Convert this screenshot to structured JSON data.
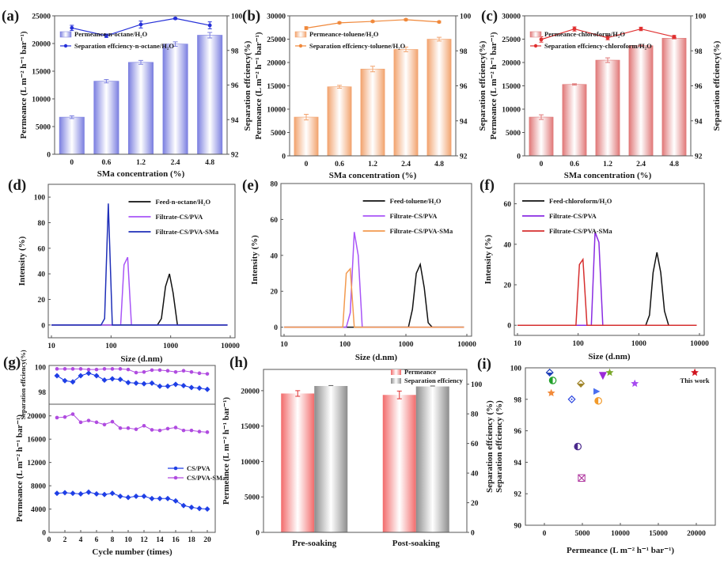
{
  "chart_data": [
    {
      "id": "a",
      "panel_label": "(a)",
      "type": "bar",
      "title": "",
      "xlabel": "SMa concentration (%)",
      "ylabel": "Permeance (L m⁻² h⁻¹ bar⁻¹)",
      "y2label": "Separation effciency(%)",
      "categories": [
        "0",
        "0.6",
        "1.2",
        "2.4",
        "4.8"
      ],
      "ylim": [
        0,
        25000
      ],
      "yticks": [
        0,
        5000,
        10000,
        15000,
        20000,
        25000
      ],
      "y2lim": [
        92,
        100
      ],
      "y2ticks": [
        92,
        94,
        96,
        98,
        100
      ],
      "color": "#7b7fe0",
      "series": [
        {
          "name": "Permeance-n-octane/H₂O",
          "kind": "bar",
          "axis": "left",
          "values": [
            6700,
            13200,
            16600,
            19900,
            21500
          ],
          "errors": [
            250,
            300,
            350,
            400,
            500
          ]
        },
        {
          "name": "Separation effciency-n-octane/H₂O",
          "kind": "line",
          "axis": "right",
          "values": [
            99.3,
            98.85,
            99.5,
            99.85,
            99.45
          ],
          "errors": [
            0.15,
            0.1,
            0.2,
            0.05,
            0.2
          ]
        }
      ],
      "legend": "top-left"
    },
    {
      "id": "b",
      "panel_label": "(b)",
      "type": "bar",
      "title": "",
      "xlabel": "SMa concentration (%)",
      "ylabel": "Permeance (L m⁻² h⁻¹ bar⁻¹)",
      "ylabel_overlap": "Separation effciency(%)",
      "y2label": "Separation effciency(%)",
      "categories": [
        "0",
        "0.6",
        "1.2",
        "2.4",
        "4.8"
      ],
      "ylim": [
        0,
        30000
      ],
      "yticks": [
        0,
        5000,
        10000,
        15000,
        20000,
        25000,
        30000
      ],
      "y2lim": [
        92,
        100
      ],
      "y2ticks": [
        92,
        94,
        96,
        98,
        100
      ],
      "color": "#f2a36e",
      "series": [
        {
          "name": "Permeance-toluene/H₂O",
          "kind": "bar",
          "axis": "left",
          "values": [
            8300,
            14800,
            18600,
            22800,
            25000
          ],
          "errors": [
            600,
            300,
            600,
            500,
            400
          ]
        },
        {
          "name": "Separation effciency-toluene/H₂O",
          "kind": "line",
          "axis": "right",
          "values": [
            99.3,
            99.6,
            99.68,
            99.78,
            99.65
          ],
          "errors": [
            0.08,
            0.05,
            0.05,
            0.05,
            0.05
          ]
        }
      ],
      "legend": "top-left"
    },
    {
      "id": "c",
      "panel_label": "(c)",
      "type": "bar",
      "title": "",
      "xlabel": "SMa concentration (%)",
      "ylabel": "Permeance (L m⁻² h⁻¹ bar⁻¹)",
      "ylabel_overlap": "Separation effciency(%)",
      "y2label": "Separation effciency(%)",
      "categories": [
        "0",
        "0.6",
        "1.2",
        "2.4",
        "4.8"
      ],
      "ylim": [
        0,
        30000
      ],
      "yticks": [
        0,
        5000,
        10000,
        15000,
        20000,
        25000,
        30000
      ],
      "y2lim": [
        92,
        100
      ],
      "y2ticks": [
        92,
        94,
        96,
        98,
        100
      ],
      "color": "#e07878",
      "series": [
        {
          "name": "Permeance-chloroform/H₂O",
          "kind": "bar",
          "axis": "left",
          "values": [
            8300,
            15300,
            20500,
            23600,
            25200
          ],
          "errors": [
            500,
            150,
            500,
            150,
            150
          ]
        },
        {
          "name": "Separation effciency-chloroform/H₂O",
          "kind": "line",
          "axis": "right",
          "values": [
            98.65,
            99.25,
            98.75,
            99.25,
            98.8
          ],
          "errors": [
            0.15,
            0.12,
            0.12,
            0.1,
            0.08
          ]
        }
      ],
      "legend": "top-left"
    },
    {
      "id": "d",
      "panel_label": "(d)",
      "type": "line",
      "xscale": "log",
      "xlabel": "Size (d.nm)",
      "ylabel": "Intensity (%)",
      "xlim": [
        10,
        10000
      ],
      "xticks": [
        "10",
        "100",
        "1000",
        "10000"
      ],
      "ylim": [
        -10,
        110
      ],
      "yticks": [
        0,
        20,
        40,
        60,
        80,
        100
      ],
      "series": [
        {
          "name": "Feed-n-octane/H₂O",
          "color": "#111111",
          "x": [
            600,
            700,
            820,
            955,
            1100,
            1300,
            1500
          ],
          "y": [
            0,
            5,
            30,
            40,
            25,
            0,
            0
          ]
        },
        {
          "name": "Filtrate-CS/PVA",
          "color": "#a855f7",
          "x": [
            145,
            165,
            190,
            220
          ],
          "y": [
            0,
            47,
            53,
            0
          ]
        },
        {
          "name": "Filtrate-CS/PVA-SMa",
          "color": "#1f2fb8",
          "x": [
            68,
            78,
            90,
            105
          ],
          "y": [
            0,
            5,
            95,
            0
          ]
        }
      ],
      "legend": "top-right"
    },
    {
      "id": "e",
      "panel_label": "(e)",
      "type": "line",
      "xscale": "log",
      "xlabel": "Size (d.nm)",
      "ylabel": "Intensity (%)",
      "xlim": [
        10,
        10000
      ],
      "xticks": [
        "10",
        "100",
        "1000",
        "10000"
      ],
      "ylim": [
        -5,
        80
      ],
      "yticks": [
        0,
        20,
        40,
        60,
        80
      ],
      "series": [
        {
          "name": "Feed-toluene/H₂O",
          "color": "#111111",
          "x": [
            1100,
            1280,
            1480,
            1720,
            2000,
            2320,
            2700
          ],
          "y": [
            0,
            10,
            30,
            35,
            22,
            2.5,
            0
          ]
        },
        {
          "name": "Filtrate-CS/PVA",
          "color": "#a855f7",
          "x": [
            105,
            122,
            142,
            165,
            192
          ],
          "y": [
            0,
            8,
            53,
            40,
            0
          ]
        },
        {
          "name": "Filtrate-CS/PVA-SMa",
          "color": "#f39a4f",
          "x": [
            92,
            105,
            122,
            142
          ],
          "y": [
            0,
            30,
            32.5,
            0
          ]
        }
      ],
      "legend": "top-right"
    },
    {
      "id": "f",
      "panel_label": "(f)",
      "type": "line",
      "xscale": "log",
      "xlabel": "Size (d.nm)",
      "ylabel": "Intensity (%)",
      "xlim": [
        10,
        10000
      ],
      "xticks": [
        "10",
        "100",
        "1000",
        "10000"
      ],
      "ylim": [
        -5,
        70
      ],
      "yticks": [
        0,
        20,
        40,
        60
      ],
      "series": [
        {
          "name": "Feed-chloroform/H₂O",
          "color": "#111111",
          "x": [
            1300,
            1500,
            1720,
            1990,
            2300,
            2650,
            3100
          ],
          "y": [
            0,
            5,
            26,
            36,
            26,
            7,
            0
          ]
        },
        {
          "name": "Filtrate-CS/PVA",
          "color": "#8a2be2",
          "x": [
            165,
            190,
            220,
            255
          ],
          "y": [
            0,
            46,
            41,
            0
          ]
        },
        {
          "name": "Filtrate-CS/PVA-SMa",
          "color": "#d62f2f",
          "x": [
            92,
            105,
            120,
            140
          ],
          "y": [
            0,
            30,
            32.5,
            0
          ]
        }
      ],
      "legend": "top-left"
    },
    {
      "id": "g",
      "panel_label": "(g)",
      "type": "line",
      "xlabel": "Cycle number (times)",
      "ylabel_top": "Separation effciency(%)",
      "ylabel_bottom": "Permeance (L m⁻² h⁻¹ bar⁻¹)",
      "xlim": [
        0,
        21
      ],
      "xticks": [
        0,
        2,
        4,
        6,
        8,
        10,
        12,
        14,
        16,
        18,
        20
      ],
      "top_ylim": [
        97,
        100
      ],
      "top_yticks": [
        98,
        100
      ],
      "bottom_ylim": [
        0,
        22000
      ],
      "bottom_yticks": [
        0,
        4000,
        8000,
        12000,
        16000,
        20000
      ],
      "x": [
        1,
        2,
        3,
        4,
        5,
        6,
        7,
        8,
        9,
        10,
        11,
        12,
        13,
        14,
        15,
        16,
        17,
        18,
        19,
        20
      ],
      "series": [
        {
          "name": "CS/PVA",
          "color": "#1f3fe6",
          "marker": "diamond",
          "efficiency": [
            99.3,
            98.9,
            98.8,
            99.3,
            99.5,
            99.3,
            98.95,
            99.05,
            99.0,
            98.75,
            98.7,
            98.65,
            98.7,
            98.45,
            98.45,
            98.6,
            98.5,
            98.35,
            98.3,
            98.2
          ],
          "permeance": [
            6700,
            6800,
            6700,
            6600,
            6900,
            6600,
            6500,
            6700,
            6200,
            6000,
            6200,
            6200,
            5800,
            5800,
            5800,
            5400,
            4600,
            4300,
            4100,
            4000
          ]
        },
        {
          "name": "CS/PVA-SMa",
          "color": "#b04be0",
          "marker": "circle",
          "efficiency": [
            99.85,
            99.85,
            99.85,
            99.85,
            99.8,
            99.8,
            99.85,
            99.85,
            99.85,
            99.8,
            99.55,
            99.6,
            99.75,
            99.75,
            99.7,
            99.6,
            99.7,
            99.6,
            99.5,
            99.45
          ],
          "permeance": [
            19700,
            19800,
            20300,
            18900,
            19200,
            18900,
            18500,
            19000,
            17900,
            17900,
            17700,
            18300,
            17600,
            17500,
            17800,
            18000,
            17500,
            17500,
            17300,
            17200
          ]
        }
      ],
      "legend": "right"
    },
    {
      "id": "h",
      "panel_label": "(h)",
      "type": "bar",
      "xlabel": "",
      "ylabel": "Permeance (L m⁻² h⁻¹ bar⁻¹)",
      "categories": [
        "Pre-soaking",
        "Post-soaking"
      ],
      "ylim": [
        0,
        23000
      ],
      "yticks": [
        0,
        5000,
        10000,
        15000,
        20000
      ],
      "y2lim": [
        0,
        110
      ],
      "y2ticks": [
        0,
        20,
        40,
        60,
        80,
        100
      ],
      "series": [
        {
          "name": "Permeance",
          "axis": "left",
          "color": "#f26a6a",
          "values": [
            19600,
            19400
          ],
          "errors": [
            400,
            550
          ]
        },
        {
          "name": "Separation effciency",
          "axis": "right",
          "color": "#8c8c8c",
          "values": [
            98.8,
            98.5
          ],
          "errors": [
            0.3,
            0.3
          ]
        }
      ],
      "legend": "top-right"
    },
    {
      "id": "i",
      "panel_label": "(i)",
      "type": "scatter",
      "xlabel": "Permeance (L m⁻² h⁻¹ bar⁻¹)",
      "ylabel": "Separation effciency (%)",
      "ylabel_overlap": "Separation effciency (%)",
      "xlim": [
        -2500,
        22500
      ],
      "xticks": [
        0,
        5000,
        10000,
        15000,
        20000
      ],
      "ylim": [
        90,
        100
      ],
      "yticks": [
        90,
        92,
        94,
        96,
        98,
        100
      ],
      "points": [
        {
          "x": 700,
          "y": 99.7,
          "color": "#1f3fb8",
          "marker": "half-diamond"
        },
        {
          "x": 1100,
          "y": 99.2,
          "color": "#22a02a",
          "marker": "half-circle"
        },
        {
          "x": 900,
          "y": 98.4,
          "color": "#f28a3a",
          "marker": "star"
        },
        {
          "x": 3600,
          "y": 98.0,
          "color": "#2a45e0",
          "marker": "open-diamond"
        },
        {
          "x": 4800,
          "y": 99.0,
          "color": "#a0852a",
          "marker": "half-diamond"
        },
        {
          "x": 4400,
          "y": 95.0,
          "color": "#4b2a8c",
          "marker": "half-circle"
        },
        {
          "x": 4900,
          "y": 93.0,
          "color": "#b03aa0",
          "marker": "x-square"
        },
        {
          "x": 6900,
          "y": 98.5,
          "color": "#4a6ef0",
          "marker": "triangle-right"
        },
        {
          "x": 7100,
          "y": 97.9,
          "color": "#f29a2a",
          "marker": "half-circle"
        },
        {
          "x": 7700,
          "y": 99.5,
          "color": "#9b2ad8",
          "marker": "triangle-down"
        },
        {
          "x": 8600,
          "y": 99.7,
          "color": "#7aa82a",
          "marker": "star"
        },
        {
          "x": 11900,
          "y": 99.0,
          "color": "#a64af0",
          "marker": "star"
        },
        {
          "x": 19800,
          "y": 99.7,
          "color": "#d0141e",
          "marker": "star",
          "label": "This work"
        }
      ],
      "annotation": "This work"
    }
  ]
}
